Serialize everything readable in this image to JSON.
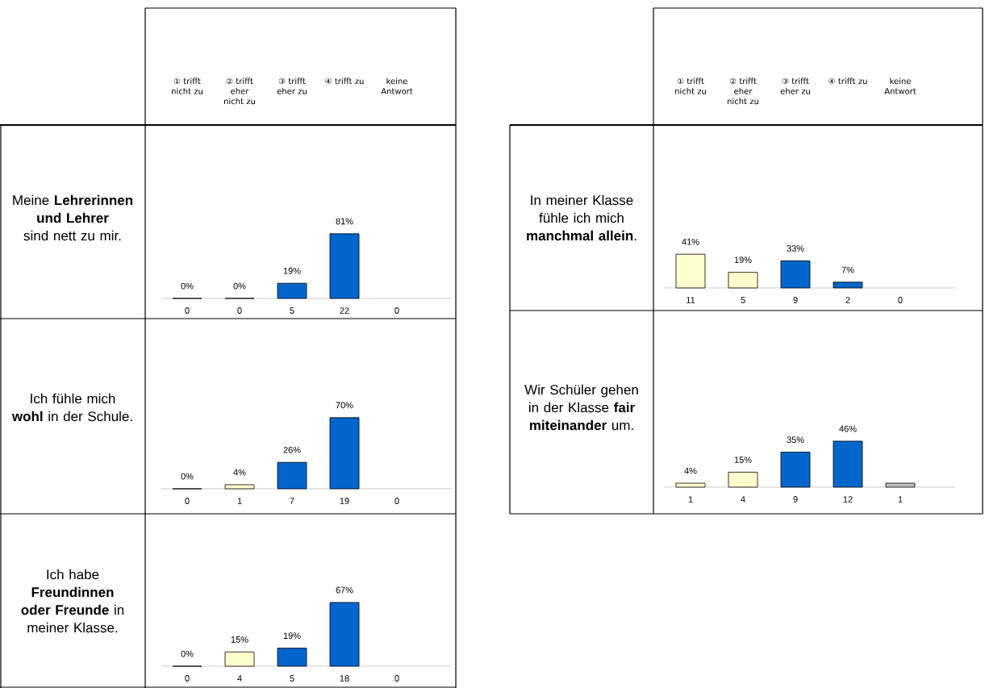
{
  "chart_data": [
    {
      "type": "bar",
      "title": "Meine **Lehrerinnen und Lehrer** sind nett zu mir.",
      "categories": [
        "① trifft nicht zu",
        "② trifft eher nicht zu",
        "③ trifft eher zu",
        "④ trifft zu",
        "keine Antwort"
      ],
      "values": [
        0,
        0,
        19,
        81,
        null
      ],
      "colors": [
        "#ffffcc",
        "#ffffcc",
        "#0066cc",
        "#0066cc",
        "#c0c0c0"
      ],
      "value_labels": [
        "0%",
        "0%",
        "19%",
        "81%",
        null
      ],
      "annotations": [
        "0",
        "0",
        "5",
        "22",
        "0"
      ]
    },
    {
      "type": "bar",
      "title": "In meiner Klasse fühle ich mich **manchmal allein**.",
      "categories": [
        "① trifft nicht zu",
        "② trifft eher nicht zu",
        "③ trifft eher zu",
        "④ trifft zu",
        "keine Antwort"
      ],
      "values": [
        41,
        19,
        33,
        7,
        null
      ],
      "colors": [
        "#ffffcc",
        "#ffffcc",
        "#0066cc",
        "#0066cc",
        "#c0c0c0"
      ],
      "value_labels": [
        "41%",
        "19%",
        "33%",
        "7%",
        null
      ],
      "annotations": [
        "11",
        "5",
        "9",
        "2",
        "0"
      ]
    },
    {
      "type": "bar",
      "title": "Ich fühle mich **wohl** in der Schule.",
      "categories": [
        null,
        null,
        null,
        null,
        null
      ],
      "values": [
        0,
        4,
        26,
        70,
        null
      ],
      "colors": [
        "#ffffcc",
        "#ffffcc",
        "#0066cc",
        "#0066cc",
        "#c0c0c0"
      ],
      "value_labels": [
        "0%",
        "4%",
        "26%",
        "70%",
        null
      ],
      "annotations": [
        "0",
        "1",
        "7",
        "19",
        "0"
      ]
    },
    {
      "type": "bar",
      "title": "Wir Schüler gehen in der Klasse **fair miteinander** um.",
      "categories": [
        null,
        null,
        null,
        null,
        null
      ],
      "values": [
        4,
        15,
        35,
        46,
        4
      ],
      "colors": [
        "#ffffcc",
        "#ffffcc",
        "#0066cc",
        "#0066cc",
        "#c0c0c0"
      ],
      "value_labels": [
        "4%",
        "15%",
        "35%",
        "46%",
        null
      ],
      "annotations": [
        "1",
        "4",
        "9",
        "12",
        "1"
      ]
    },
    {
      "type": "bar",
      "title": "Ich habe **Freundinnen oder Freunde** in meiner Klasse.",
      "categories": [
        null,
        null,
        null,
        null,
        null
      ],
      "values": [
        0,
        15,
        19,
        67,
        null
      ],
      "colors": [
        "#ffffcc",
        "#ffffcc",
        "#0066cc",
        "#0066cc",
        "#c0c0c0"
      ],
      "value_labels": [
        "0%",
        "15%",
        "19%",
        "67%",
        null
      ],
      "annotations": [
        "0",
        "4",
        "5",
        "18",
        "0"
      ]
    }
  ]
}
